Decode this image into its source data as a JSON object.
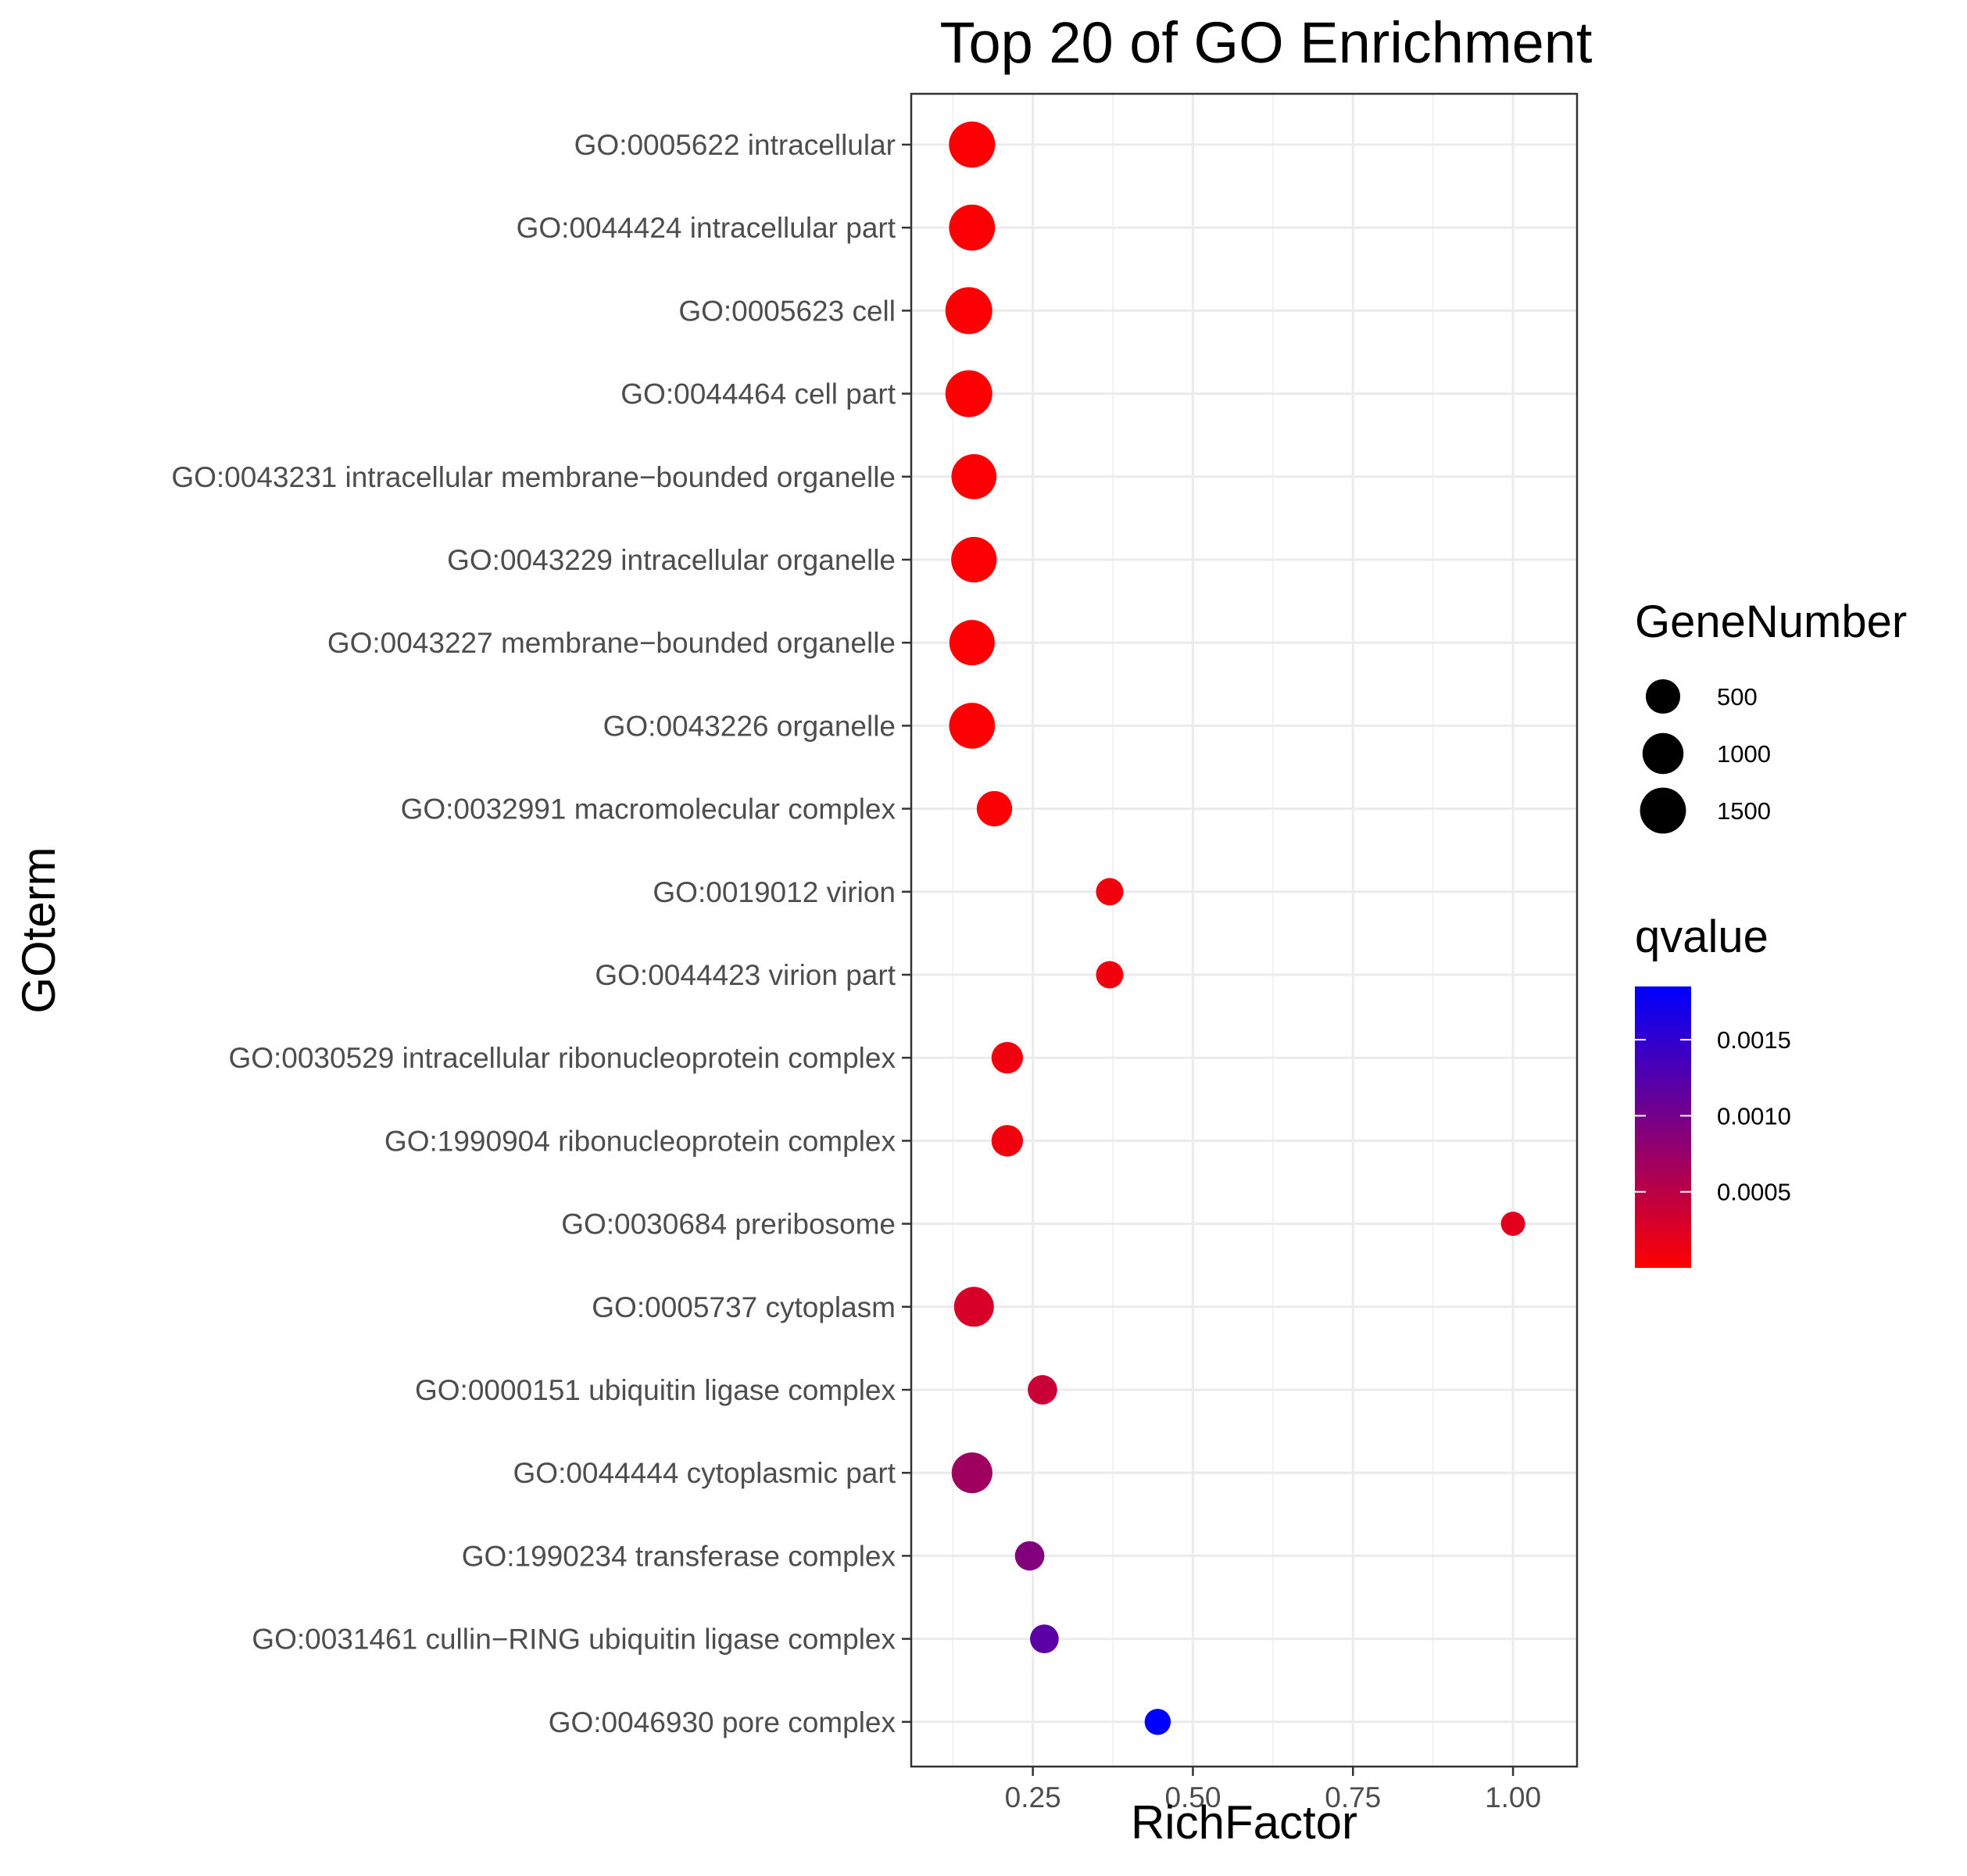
{
  "chart_data": {
    "type": "scatter",
    "title": "Top 20 of GO Enrichment",
    "xlabel": "RichFactor",
    "ylabel": "GOterm",
    "xlim": [
      0.06,
      1.1
    ],
    "xticks": [
      0.25,
      0.5,
      0.75,
      1.0
    ],
    "xtick_labels": [
      "0.25",
      "0.50",
      "0.75",
      "1.00"
    ],
    "grid": true,
    "legend_position": "right",
    "size_legend": {
      "title": "GeneNumber",
      "values": [
        500,
        1000,
        1500
      ],
      "labels": [
        "500",
        "1000",
        "1500"
      ]
    },
    "color_legend": {
      "title": "qvalue",
      "low_color": "#ff0000",
      "high_color": "#0000ff",
      "range": [
        0.0,
        0.00185
      ],
      "ticks": [
        0.0005,
        0.001,
        0.0015
      ],
      "tick_labels": [
        "0.0005",
        "0.0010",
        "0.0015"
      ]
    },
    "points": [
      {
        "term": "GO:0005622 intracellular",
        "rich_factor": 0.155,
        "gene_number": 1520,
        "qvalue": 2e-05
      },
      {
        "term": "GO:0044424 intracellular part",
        "rich_factor": 0.155,
        "gene_number": 1500,
        "qvalue": 2e-05
      },
      {
        "term": "GO:0005623 cell",
        "rich_factor": 0.15,
        "gene_number": 1600,
        "qvalue": 2e-05
      },
      {
        "term": "GO:0044464 cell part",
        "rich_factor": 0.15,
        "gene_number": 1600,
        "qvalue": 2e-05
      },
      {
        "term": "GO:0043231 intracellular membrane−bounded organelle",
        "rich_factor": 0.158,
        "gene_number": 1400,
        "qvalue": 2e-05
      },
      {
        "term": "GO:0043229 intracellular organelle",
        "rich_factor": 0.158,
        "gene_number": 1450,
        "qvalue": 2e-05
      },
      {
        "term": "GO:0043227 membrane−bounded organelle",
        "rich_factor": 0.155,
        "gene_number": 1430,
        "qvalue": 2e-05
      },
      {
        "term": "GO:0043226 organelle",
        "rich_factor": 0.155,
        "gene_number": 1480,
        "qvalue": 2e-05
      },
      {
        "term": "GO:0032991 macromolecular complex",
        "rich_factor": 0.19,
        "gene_number": 560,
        "qvalue": 3e-05
      },
      {
        "term": "GO:0019012 virion",
        "rich_factor": 0.37,
        "gene_number": 150,
        "qvalue": 0.0001
      },
      {
        "term": "GO:0044423 virion part",
        "rich_factor": 0.37,
        "gene_number": 150,
        "qvalue": 0.0001
      },
      {
        "term": "GO:0030529 intracellular ribonucleoprotein complex",
        "rich_factor": 0.21,
        "gene_number": 330,
        "qvalue": 0.0001
      },
      {
        "term": "GO:1990904 ribonucleoprotein complex",
        "rich_factor": 0.21,
        "gene_number": 330,
        "qvalue": 0.0001
      },
      {
        "term": "GO:0030684 preribosome",
        "rich_factor": 1.0,
        "gene_number": 60,
        "qvalue": 0.0002
      },
      {
        "term": "GO:0005737 cytoplasm",
        "rich_factor": 0.158,
        "gene_number": 900,
        "qvalue": 0.0003
      },
      {
        "term": "GO:0000151 ubiquitin ligase complex",
        "rich_factor": 0.265,
        "gene_number": 230,
        "qvalue": 0.0004
      },
      {
        "term": "GO:0044444 cytoplasmic part",
        "rich_factor": 0.155,
        "gene_number": 980,
        "qvalue": 0.0007
      },
      {
        "term": "GO:1990234 transferase complex",
        "rich_factor": 0.245,
        "gene_number": 230,
        "qvalue": 0.0009
      },
      {
        "term": "GO:0031461 cullin−RING ubiquitin ligase complex",
        "rich_factor": 0.268,
        "gene_number": 200,
        "qvalue": 0.0012
      },
      {
        "term": "GO:0046930 pore complex",
        "rich_factor": 0.445,
        "gene_number": 110,
        "qvalue": 0.00185
      }
    ]
  }
}
